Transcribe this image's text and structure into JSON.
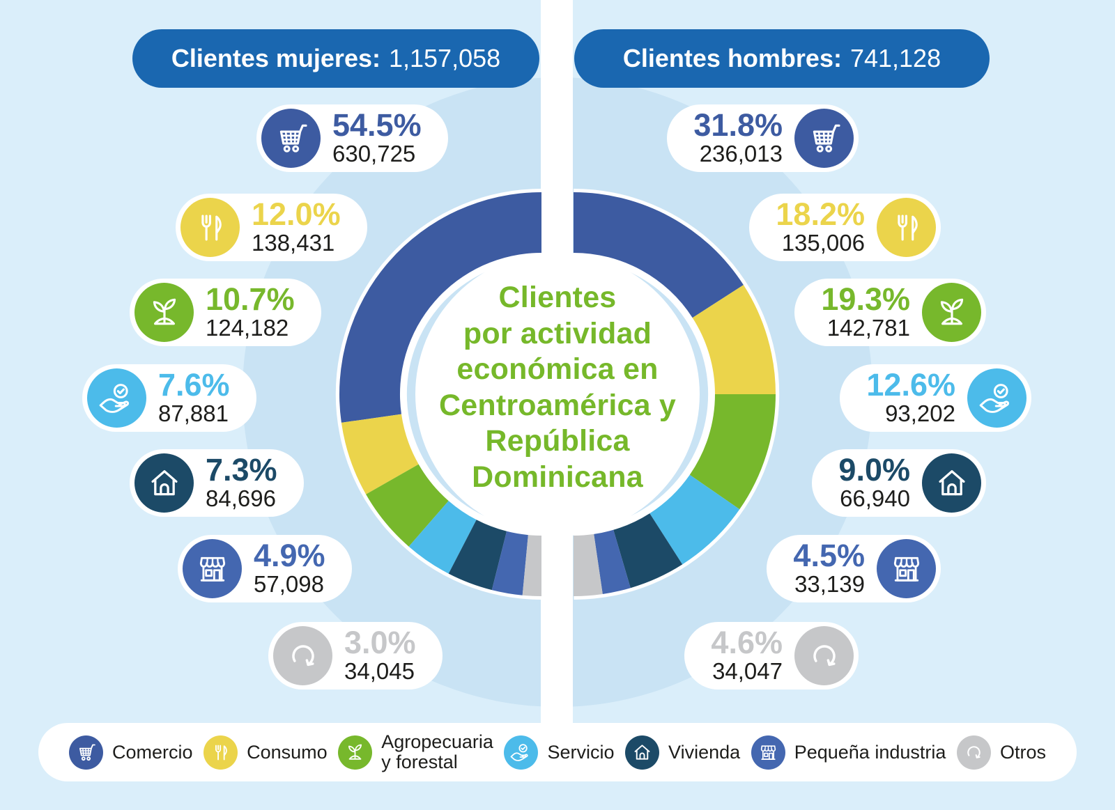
{
  "colors": {
    "page_bg": "#daeefa",
    "halo": "#c9e3f4",
    "banner": "#1a67b0",
    "title_green": "#76b82a",
    "count_text": "#1d1d1b",
    "pill_bg": "#ffffff"
  },
  "header": {
    "women_label": "Clientes mujeres:",
    "women_value": "1,157,058",
    "men_label": "Clientes hombres:",
    "men_value": "741,128"
  },
  "center": {
    "title_lines": [
      "Clientes",
      "por actividad",
      "económica en",
      "Centroamérica y",
      "República",
      "Dominicana"
    ]
  },
  "chart_data": {
    "type": "pie",
    "variant": "split-half-donut",
    "title": "Clientes por actividad económica en Centroamérica y República Dominicana",
    "legend_position": "bottom",
    "categories": [
      "Comercio",
      "Consumo",
      "Agropecuaria y forestal",
      "Servicio",
      "Vivienda",
      "Pequeña industria",
      "Otros"
    ],
    "colors": [
      "#3d5ba1",
      "#ebd44b",
      "#77b82c",
      "#4cbbea",
      "#1c4a67",
      "#4467b0",
      "#c6c7c9"
    ],
    "icons": [
      "cart-icon",
      "utensils-icon",
      "plant-icon",
      "hand-check-icon",
      "house-icon",
      "store-icon",
      "refresh-icon"
    ],
    "series": [
      {
        "name": "Clientes mujeres",
        "side": "left",
        "total": 1157058,
        "total_label": "1,157,058",
        "percents": [
          54.5,
          12.0,
          10.7,
          7.6,
          7.3,
          4.9,
          3.0
        ],
        "percent_labels": [
          "54.5%",
          "12.0%",
          "10.7%",
          "7.6%",
          "7.3%",
          "4.9%",
          "3.0%"
        ],
        "counts": [
          630725,
          138431,
          124182,
          87881,
          84696,
          57098,
          34045
        ],
        "count_labels": [
          "630,725",
          "138,431",
          "124,182",
          "87,881",
          "84,696",
          "57,098",
          "34,045"
        ]
      },
      {
        "name": "Clientes hombres",
        "side": "right",
        "total": 741128,
        "total_label": "741,128",
        "percents": [
          31.8,
          18.2,
          19.3,
          12.6,
          9.0,
          4.5,
          4.6
        ],
        "percent_labels": [
          "31.8%",
          "18.2%",
          "19.3%",
          "12.6%",
          "9.0%",
          "4.5%",
          "4.6%"
        ],
        "counts": [
          236013,
          135006,
          142781,
          93202,
          66940,
          33139,
          34047
        ],
        "count_labels": [
          "236,013",
          "135,006",
          "142,781",
          "93,202",
          "66,940",
          "33,139",
          "34,047"
        ]
      }
    ]
  },
  "legend": {
    "items": [
      {
        "label_lines": [
          "Comercio"
        ],
        "icon": "cart-icon"
      },
      {
        "label_lines": [
          "Consumo"
        ],
        "icon": "utensils-icon"
      },
      {
        "label_lines": [
          "Agropecuaria",
          "y forestal"
        ],
        "icon": "plant-icon"
      },
      {
        "label_lines": [
          "Servicio"
        ],
        "icon": "hand-check-icon"
      },
      {
        "label_lines": [
          "Vivienda"
        ],
        "icon": "house-icon"
      },
      {
        "label_lines": [
          "Pequeña industria"
        ],
        "icon": "store-icon"
      },
      {
        "label_lines": [
          "Otros"
        ],
        "icon": "refresh-icon"
      }
    ]
  }
}
